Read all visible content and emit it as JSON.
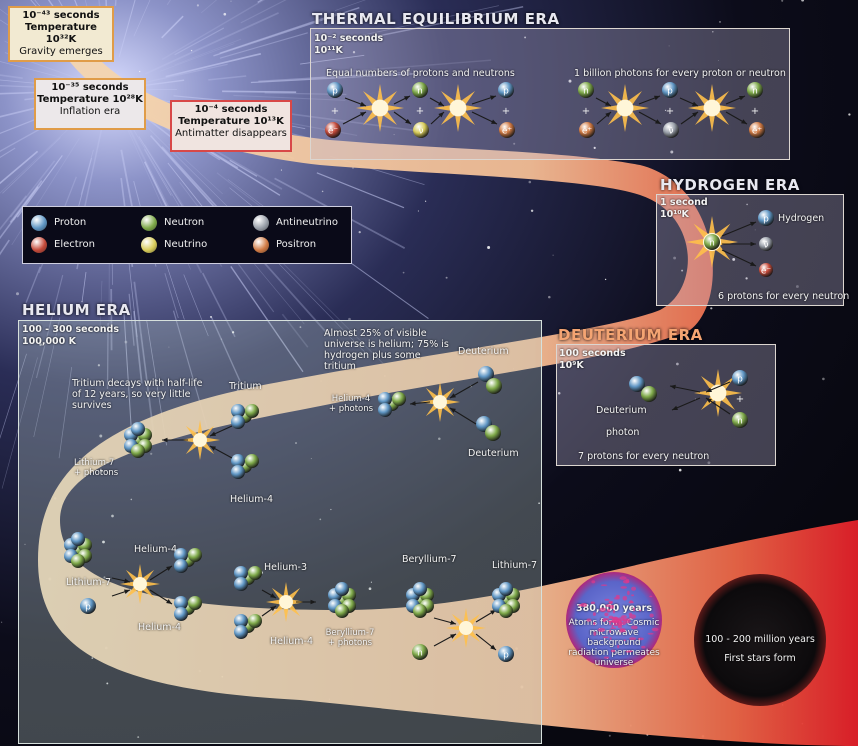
{
  "time_boxes": [
    {
      "line1": "10⁻⁴³ seconds",
      "line2": "Temperature 10³²K",
      "line3": "Gravity emerges"
    },
    {
      "line1": "10⁻³⁵ seconds",
      "line2": "Temperature 10²⁸K",
      "line3": "Inflation era"
    },
    {
      "line1": "10⁻⁴ seconds",
      "line2": "Temperature 10¹³K",
      "line3": "Antimatter disappears"
    }
  ],
  "thermal": {
    "title": "THERMAL EQUILIBRIUM ERA",
    "time": "10⁻² seconds",
    "temp": "10¹¹K",
    "caption_left": "Equal numbers of protons and neutrons",
    "caption_right": "1 billion photons for every proton or neutron"
  },
  "hydrogen": {
    "title": "HYDROGEN ERA",
    "time": "1 second",
    "temp": "10¹⁰K",
    "label": "Hydrogen",
    "caption": "6 protons for every neutron"
  },
  "legend": {
    "items": [
      {
        "label": "Proton",
        "color": "#5f96c4"
      },
      {
        "label": "Neutron",
        "color": "#7faa4a"
      },
      {
        "label": "Antineutrino",
        "color": "#9aa0aa"
      },
      {
        "label": "Electron",
        "color": "#c44a3a"
      },
      {
        "label": "Neutrino",
        "color": "#d8cc5a"
      },
      {
        "label": "Positron",
        "color": "#d07a44"
      }
    ]
  },
  "deuterium": {
    "title": "DEUTERIUM ERA",
    "time": "100 seconds",
    "temp": "10⁹K",
    "label_deuterium": "Deuterium",
    "label_photon": "photon",
    "caption": "7 protons for every neutron"
  },
  "helium": {
    "title": "HELIUM ERA",
    "time": "100 - 300 seconds",
    "temp": "100,000 K",
    "note_top": "Almost 25% of visible universe is helium; 75% is hydrogen plus some tritium",
    "note_tritium": "Tritium decays with half-life of 12 years, so very little survives",
    "labels": {
      "deuterium_a": "Deuterium",
      "deuterium_b": "Deuterium",
      "helium4_photons": "Helium-4",
      "photons_word": "+ photons",
      "tritium": "Tritium",
      "helium4_a": "Helium-4",
      "lithium7_photons": "Lithium-7",
      "lithium7_a": "Lithium-7",
      "helium4_b": "Helium-4",
      "helium4_c": "Helium-4",
      "helium3": "Helium-3",
      "helium4_d": "Helium-4",
      "beryllium7_photons": "Beryllium-7",
      "beryllium7": "Beryllium-7",
      "lithium7_b": "Lithium-7"
    }
  },
  "atoms": {
    "years": "380,000 years",
    "text": "Atoms form. Cosmic microwave background radiation permeates universe"
  },
  "stars": {
    "years": "100 - 200 million years",
    "text": "First stars form"
  },
  "particle_letters": {
    "proton": "p",
    "neutron": "n",
    "electron": "e⁻",
    "positron": "e⁺",
    "neutrino": "ν",
    "antineutrino": "ν̄"
  }
}
